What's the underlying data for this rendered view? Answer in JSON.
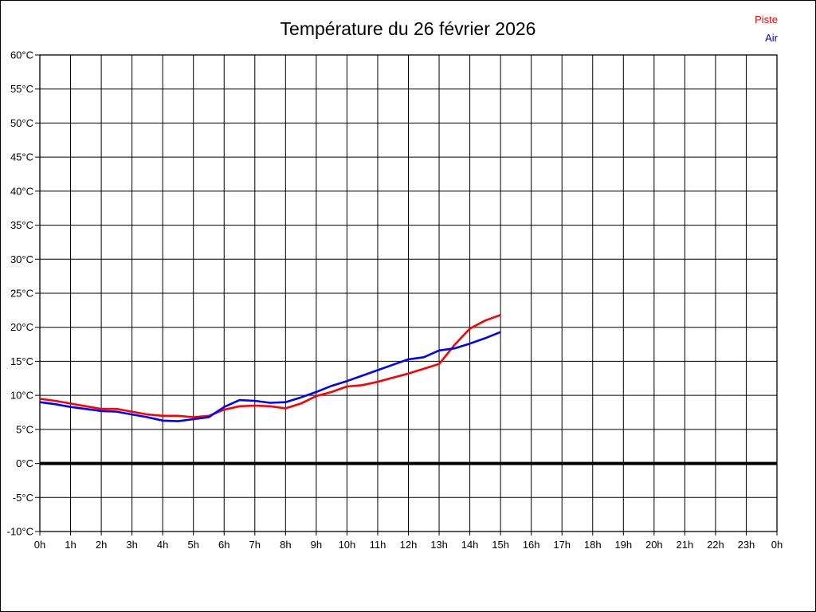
{
  "title": "Température du 26 février 2026",
  "legend": {
    "piste": "Piste",
    "air": "Air"
  },
  "colors": {
    "piste": "#ff0000",
    "air": "#0000ff",
    "grid": "#000000",
    "text": "#000000",
    "background": "#ffffff"
  },
  "chart_data": {
    "type": "line",
    "title": "Température du 26 février 2026",
    "legend_position": "top-right",
    "grid": true,
    "x_axis": {
      "unit": "h",
      "min": 0,
      "max": 24,
      "ticks": [
        "0h",
        "1h",
        "2h",
        "3h",
        "4h",
        "5h",
        "6h",
        "7h",
        "8h",
        "9h",
        "10h",
        "11h",
        "12h",
        "13h",
        "14h",
        "15h",
        "16h",
        "17h",
        "18h",
        "19h",
        "20h",
        "21h",
        "22h",
        "23h",
        "0h"
      ]
    },
    "y_axis": {
      "unit": "°C",
      "min": -10,
      "max": 60,
      "step": 5,
      "ticks": [
        "60°C",
        "55°C",
        "50°C",
        "45°C",
        "40°C",
        "35°C",
        "30°C",
        "25°C",
        "20°C",
        "15°C",
        "10°C",
        "5°C",
        "0°C",
        "-5°C",
        "-10°C"
      ],
      "tick_values": [
        60,
        55,
        50,
        45,
        40,
        35,
        30,
        25,
        20,
        15,
        10,
        5,
        0,
        -5,
        -10
      ]
    },
    "zero_line": {
      "value": 0,
      "thick": true
    },
    "x": [
      0,
      0.5,
      1,
      1.5,
      2,
      2.5,
      3,
      3.5,
      4,
      4.5,
      5,
      5.5,
      6,
      6.5,
      7,
      7.5,
      8,
      8.5,
      9,
      9.5,
      10,
      10.5,
      11,
      11.5,
      12,
      12.5,
      13,
      13.5,
      14,
      14.5,
      15
    ],
    "series": [
      {
        "name": "Piste",
        "color": "#ff0000",
        "values": [
          9.5,
          9.2,
          8.8,
          8.4,
          8.0,
          8.0,
          7.6,
          7.2,
          7.0,
          7.0,
          6.8,
          7.0,
          7.9,
          8.4,
          8.5,
          8.4,
          8.1,
          8.8,
          9.9,
          10.5,
          11.3,
          11.5,
          12.0,
          12.6,
          13.2,
          13.9,
          14.6,
          17.4,
          19.8,
          21.0,
          21.8
        ]
      },
      {
        "name": "Air",
        "color": "#0000ff",
        "values": [
          9.0,
          8.7,
          8.3,
          8.0,
          7.7,
          7.6,
          7.2,
          6.8,
          6.3,
          6.2,
          6.5,
          6.8,
          8.3,
          9.3,
          9.2,
          8.9,
          9.0,
          9.7,
          10.5,
          11.4,
          12.1,
          12.9,
          13.7,
          14.5,
          15.3,
          15.6,
          16.6,
          16.9,
          17.6,
          18.4,
          19.3
        ]
      }
    ]
  }
}
